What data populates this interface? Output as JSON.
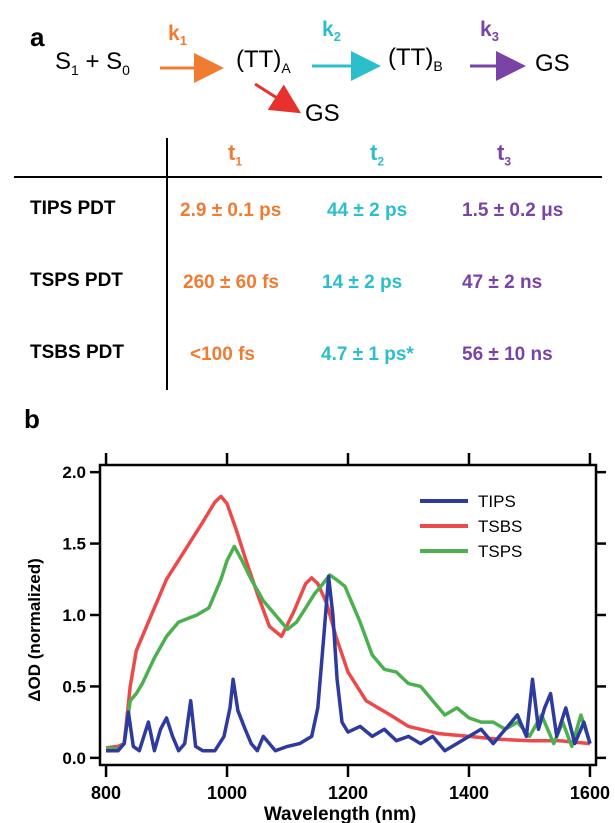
{
  "panel_a": {
    "label": "a",
    "scheme": {
      "reactant": "S",
      "reactant_sub1": "1",
      "plus": " + S",
      "reactant_sub2": "0",
      "k1": "k",
      "k1_sub": "1",
      "k2": "k",
      "k2_sub": "2",
      "k3": "k",
      "k3_sub": "3",
      "intermediate_a": "(TT)",
      "intermediate_a_sub": "A",
      "intermediate_b": "(TT)",
      "intermediate_b_sub": "B",
      "product": "GS",
      "side_product": "GS"
    },
    "table": {
      "headers": [
        {
          "main": "t",
          "sub": "1"
        },
        {
          "main": "t",
          "sub": "2"
        },
        {
          "main": "t",
          "sub": "3"
        }
      ],
      "rows": [
        {
          "label": "TIPS PDT",
          "t1": "2.9 ± 0.1 ps",
          "t2": "44 ± 2 ps",
          "t3": "1.5 ± 0.2 μs"
        },
        {
          "label": "TSPS PDT",
          "t1": "260 ± 60 fs",
          "t2": "14 ± 2 ps",
          "t3": "47 ± 2 ns"
        },
        {
          "label": "TSBS PDT",
          "t1": "<100 fs",
          "t2": "4.7 ± 1 ps*",
          "t3": "56 ± 10 ns"
        }
      ]
    },
    "colors": {
      "k1": "#f07b31",
      "k2": "#2bbfcb",
      "k3": "#7a44a6",
      "side": "#e8312c"
    }
  },
  "panel_b": {
    "label": "b",
    "chart_data": {
      "type": "line",
      "xlabel": "Wavelength (nm)",
      "ylabel": "ΔOD  (normalized)",
      "xlim": [
        790,
        1610
      ],
      "ylim": [
        -0.05,
        2.05
      ],
      "x_ticks": [
        "800",
        "1000",
        "1200",
        "1400",
        "1600"
      ],
      "y_ticks": [
        "0.0",
        "0.5",
        "1.0",
        "1.5",
        "2.0"
      ],
      "legend_position": "top-right",
      "series": [
        {
          "name": "TIPS",
          "color": "#2e3a9e",
          "points": [
            [
              800,
              0.05
            ],
            [
              820,
              0.05
            ],
            [
              830,
              0.1
            ],
            [
              837,
              0.32
            ],
            [
              845,
              0.08
            ],
            [
              855,
              0.05
            ],
            [
              870,
              0.25
            ],
            [
              880,
              0.05
            ],
            [
              890,
              0.2
            ],
            [
              900,
              0.28
            ],
            [
              910,
              0.15
            ],
            [
              920,
              0.05
            ],
            [
              930,
              0.1
            ],
            [
              940,
              0.4
            ],
            [
              948,
              0.08
            ],
            [
              960,
              0.05
            ],
            [
              980,
              0.05
            ],
            [
              995,
              0.15
            ],
            [
              1005,
              0.35
            ],
            [
              1010,
              0.55
            ],
            [
              1018,
              0.33
            ],
            [
              1030,
              0.2
            ],
            [
              1040,
              0.1
            ],
            [
              1050,
              0.05
            ],
            [
              1060,
              0.15
            ],
            [
              1080,
              0.05
            ],
            [
              1100,
              0.08
            ],
            [
              1120,
              0.1
            ],
            [
              1140,
              0.15
            ],
            [
              1150,
              0.35
            ],
            [
              1160,
              0.85
            ],
            [
              1168,
              1.27
            ],
            [
              1175,
              1.0
            ],
            [
              1182,
              0.55
            ],
            [
              1190,
              0.25
            ],
            [
              1200,
              0.18
            ],
            [
              1220,
              0.22
            ],
            [
              1240,
              0.15
            ],
            [
              1260,
              0.2
            ],
            [
              1280,
              0.12
            ],
            [
              1300,
              0.15
            ],
            [
              1320,
              0.1
            ],
            [
              1340,
              0.15
            ],
            [
              1360,
              0.05
            ],
            [
              1380,
              0.1
            ],
            [
              1400,
              0.15
            ],
            [
              1420,
              0.2
            ],
            [
              1440,
              0.1
            ],
            [
              1460,
              0.2
            ],
            [
              1480,
              0.3
            ],
            [
              1495,
              0.15
            ],
            [
              1505,
              0.55
            ],
            [
              1515,
              0.2
            ],
            [
              1525,
              0.35
            ],
            [
              1535,
              0.45
            ],
            [
              1545,
              0.15
            ],
            [
              1560,
              0.35
            ],
            [
              1575,
              0.1
            ],
            [
              1590,
              0.25
            ],
            [
              1600,
              0.1
            ]
          ]
        },
        {
          "name": "TSBS",
          "color": "#ec4a4a",
          "points": [
            [
              800,
              0.07
            ],
            [
              820,
              0.08
            ],
            [
              830,
              0.1
            ],
            [
              840,
              0.5
            ],
            [
              850,
              0.75
            ],
            [
              870,
              0.95
            ],
            [
              900,
              1.25
            ],
            [
              930,
              1.45
            ],
            [
              960,
              1.65
            ],
            [
              980,
              1.79
            ],
            [
              990,
              1.83
            ],
            [
              1000,
              1.78
            ],
            [
              1015,
              1.6
            ],
            [
              1030,
              1.4
            ],
            [
              1050,
              1.15
            ],
            [
              1070,
              0.92
            ],
            [
              1090,
              0.85
            ],
            [
              1110,
              1.02
            ],
            [
              1130,
              1.22
            ],
            [
              1140,
              1.26
            ],
            [
              1150,
              1.22
            ],
            [
              1165,
              1.08
            ],
            [
              1180,
              0.85
            ],
            [
              1200,
              0.6
            ],
            [
              1230,
              0.4
            ],
            [
              1270,
              0.3
            ],
            [
              1300,
              0.22
            ],
            [
              1350,
              0.17
            ],
            [
              1400,
              0.15
            ],
            [
              1450,
              0.13
            ],
            [
              1500,
              0.12
            ],
            [
              1550,
              0.12
            ],
            [
              1600,
              0.1
            ]
          ]
        },
        {
          "name": "TSPS",
          "color": "#4caf50",
          "points": [
            [
              800,
              0.07
            ],
            [
              820,
              0.06
            ],
            [
              830,
              0.1
            ],
            [
              840,
              0.4
            ],
            [
              850,
              0.45
            ],
            [
              860,
              0.52
            ],
            [
              880,
              0.7
            ],
            [
              900,
              0.85
            ],
            [
              920,
              0.95
            ],
            [
              950,
              1.0
            ],
            [
              970,
              1.05
            ],
            [
              990,
              1.25
            ],
            [
              1000,
              1.38
            ],
            [
              1012,
              1.48
            ],
            [
              1025,
              1.38
            ],
            [
              1040,
              1.25
            ],
            [
              1060,
              1.1
            ],
            [
              1080,
              1.0
            ],
            [
              1100,
              0.9
            ],
            [
              1115,
              0.95
            ],
            [
              1130,
              1.05
            ],
            [
              1145,
              1.15
            ],
            [
              1155,
              1.2
            ],
            [
              1170,
              1.28
            ],
            [
              1180,
              1.25
            ],
            [
              1195,
              1.2
            ],
            [
              1205,
              1.1
            ],
            [
              1220,
              0.95
            ],
            [
              1240,
              0.72
            ],
            [
              1260,
              0.62
            ],
            [
              1280,
              0.6
            ],
            [
              1300,
              0.52
            ],
            [
              1320,
              0.5
            ],
            [
              1340,
              0.4
            ],
            [
              1360,
              0.3
            ],
            [
              1380,
              0.35
            ],
            [
              1400,
              0.28
            ],
            [
              1420,
              0.25
            ],
            [
              1440,
              0.25
            ],
            [
              1460,
              0.2
            ],
            [
              1480,
              0.25
            ],
            [
              1500,
              0.15
            ],
            [
              1520,
              0.3
            ],
            [
              1540,
              0.1
            ],
            [
              1555,
              0.25
            ],
            [
              1570,
              0.08
            ],
            [
              1585,
              0.3
            ],
            [
              1600,
              0.1
            ]
          ]
        }
      ]
    }
  }
}
